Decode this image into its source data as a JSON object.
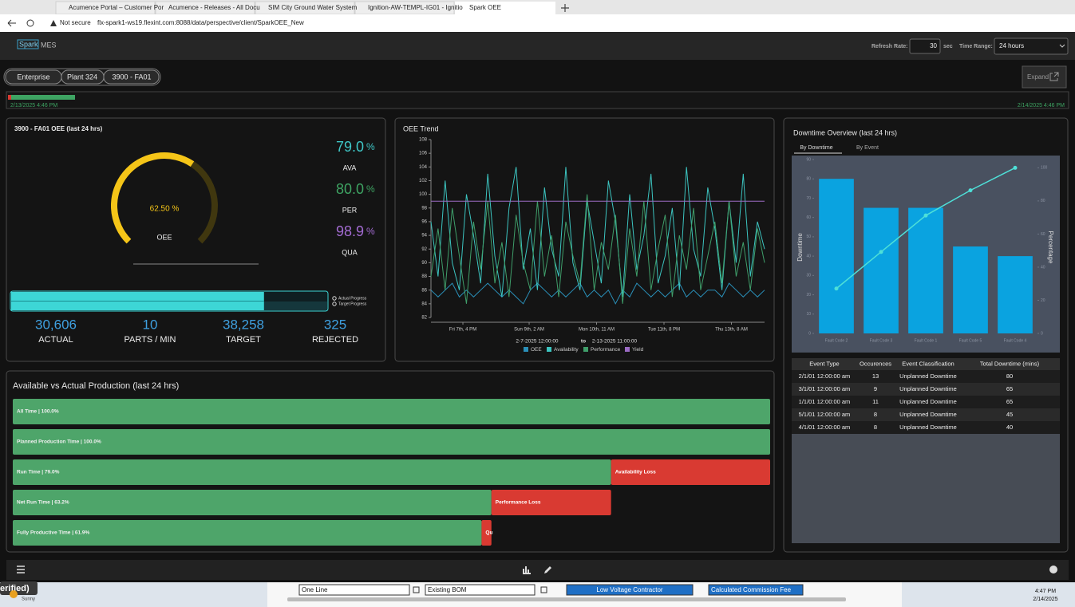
{
  "browser": {
    "tabs": [
      "Acumence Portal – Customer Por",
      "Acumence - Releases - All Docu",
      "SIM City Ground Water System",
      "Ignition-AW-TEMPL-IG01 - Ignitio",
      "Spark OEE"
    ],
    "security": "Not secure",
    "url": "flx-spark1-ws19.flexint.com:8088/data/perspective/client/SparkOEE_New"
  },
  "header": {
    "logo_main": "Spark",
    "logo_sub": "MES",
    "refresh_label": "Refresh Rate:",
    "refresh_value": "30",
    "refresh_unit": "sec",
    "time_range_label": "Time Range:",
    "time_range": "24 hours",
    "breadcrumbs": [
      "Enterprise",
      "Plant 324",
      "3900 - FA01"
    ],
    "expand": "Expand",
    "timeline_start": "2/13/2025 4:46 PM",
    "timeline_end": "2/14/2025 4:46 PM"
  },
  "oee_panel": {
    "title": "3900 - FA01 OEE (last 24 hrs)",
    "gauge": {
      "type": "gauge",
      "value": 62.5,
      "value_label": "62.50 %",
      "label": "OEE",
      "ylim": [
        0,
        100
      ],
      "color": "#f5c518",
      "track_color": "#40370f"
    },
    "metrics": [
      {
        "name": "AVA",
        "value": 79,
        "value_label": "79.0",
        "unit": "%",
        "color": "#3fc7c7"
      },
      {
        "name": "PER",
        "value": 80,
        "value_label": "80.0",
        "unit": "%",
        "color": "#3ea463"
      },
      {
        "name": "QUA",
        "value": 98.9,
        "unit": "%",
        "color": "#a26bd1"
      }
    ],
    "progress": {
      "legend": [
        "Actual Progress",
        "Target Progress"
      ],
      "color": "#3dd6d6",
      "track_color": "#15373c"
    },
    "stats": [
      {
        "name": "ACTUAL",
        "value": 30606,
        "value_label": "30,606"
      },
      {
        "name": "PARTS / MIN",
        "value": 10
      },
      {
        "name": "TARGET",
        "value": 38258,
        "value_label": "38,258"
      },
      {
        "name": "REJECTED",
        "value": 325
      }
    ]
  },
  "trend_chart": {
    "type": "line",
    "title": "OEE Trend",
    "x": [
      0,
      3,
      6,
      9,
      12,
      15,
      18,
      21,
      24,
      27,
      30,
      33,
      36,
      39,
      42,
      45,
      48,
      51,
      54,
      57,
      60,
      63,
      66,
      69,
      72,
      75,
      78,
      81,
      84,
      87,
      90,
      93,
      96,
      99,
      102,
      105,
      108,
      111,
      114,
      117,
      120,
      123,
      126,
      129,
      132,
      135,
      138,
      141
    ],
    "xlim": [
      0,
      141
    ],
    "xticks": [
      {
        "value": 13.5,
        "label": "Fri 7th, 4 PM"
      },
      {
        "value": 41.5,
        "label": "Sun 9th, 2 AM"
      },
      {
        "value": 70,
        "label": "Mon 10th, 11 AM"
      },
      {
        "value": 98.5,
        "label": "Tue 11th, 8 PM"
      },
      {
        "value": 127,
        "label": "Thu 13th, 8 AM"
      }
    ],
    "ylim": [
      82,
      108
    ],
    "yticks": [
      82,
      84,
      86,
      88,
      90,
      92,
      94,
      96,
      98,
      100,
      102,
      104,
      106,
      108
    ],
    "range_start": "2-7-2025  12:00:00",
    "range_sep": "to",
    "range_end": "2-13-2025  11:00:00",
    "series": [
      {
        "name": "OEE",
        "color": "#2a8fb8",
        "values": [
          86,
          85,
          86,
          87,
          85,
          86,
          85,
          86,
          87,
          86,
          85,
          86,
          85,
          84,
          86,
          87,
          86,
          85,
          86,
          85,
          86,
          87,
          85,
          86,
          85,
          86,
          84,
          86,
          85,
          87,
          86,
          85,
          86,
          85,
          86,
          87,
          85,
          86,
          85,
          86,
          86,
          85,
          87,
          86,
          85,
          86,
          85,
          86
        ]
      },
      {
        "name": "Availability",
        "color": "#3cc4c0",
        "values": [
          96,
          88,
          102,
          90,
          86,
          100,
          94,
          87,
          103,
          91,
          85,
          98,
          104,
          89,
          95,
          86,
          101,
          92,
          88,
          104,
          90,
          86,
          99,
          93,
          87,
          102,
          96,
          85,
          100,
          89,
          94,
          103,
          87,
          91,
          98,
          86,
          104,
          92,
          88,
          101,
          95,
          86,
          99,
          90,
          103,
          88,
          96,
          92
        ]
      },
      {
        "name": "Performance",
        "color": "#3f9e6a",
        "values": [
          88,
          95,
          86,
          98,
          91,
          84,
          96,
          89,
          99,
          87,
          93,
          85,
          97,
          90,
          86,
          99,
          88,
          94,
          85,
          96,
          91,
          87,
          100,
          86,
          93,
          89,
          97,
          84,
          95,
          88,
          99,
          86,
          92,
          97,
          85,
          94,
          89,
          98,
          86,
          91,
          96,
          87,
          99,
          88,
          93,
          86,
          95,
          90
        ]
      },
      {
        "name": "Yield",
        "color": "#9b6bc4",
        "values": [
          99,
          99,
          99,
          99,
          99,
          99,
          99,
          99,
          99,
          99,
          99,
          99,
          99,
          99,
          99,
          99,
          99,
          99,
          99,
          99,
          99,
          99,
          99,
          99,
          99,
          99,
          99,
          99,
          99,
          99,
          99,
          99,
          99,
          99,
          99,
          99,
          99,
          99,
          99,
          99,
          99,
          99,
          99,
          99,
          99,
          99,
          99,
          99
        ]
      }
    ]
  },
  "downtime_chart": {
    "type": "bar",
    "title": "Downtime Overview (last 24 hrs)",
    "tabs": [
      "By Downtime",
      "By Event"
    ],
    "categories": [
      "Fault Code 2",
      "Fault Code 3",
      "Fault Code 1",
      "Fault Code 5",
      "Fault Code 4"
    ],
    "series": [
      {
        "name": "Downtime",
        "color": "#0aa3e0",
        "values": [
          80,
          65,
          65,
          45,
          40
        ]
      },
      {
        "name": "Percentage",
        "color": "#4ee0d8",
        "axis": "y2",
        "values": [
          27.1,
          49.2,
          71.2,
          86.4,
          100
        ]
      }
    ],
    "ylim": [
      0,
      90
    ],
    "yticks": [
      0,
      10,
      20,
      30,
      40,
      50,
      60,
      70,
      80,
      90
    ],
    "y2lim": [
      0,
      105
    ],
    "y2ticks": [
      0,
      20,
      40,
      60,
      80,
      100
    ]
  },
  "downtime_table": {
    "headers": [
      "Event Type",
      "Occurences",
      "Event Classification",
      "Total Downtime (mins)"
    ],
    "rows": [
      [
        "2/1/01 12:00:00 am",
        13,
        "Unplanned Downtime",
        80
      ],
      [
        "3/1/01 12:00:00 am",
        9,
        "Unplanned Downtime",
        65
      ],
      [
        "1/1/01 12:00:00 am",
        11,
        "Unplanned Downtime",
        65
      ],
      [
        "5/1/01 12:00:00 am",
        8,
        "Unplanned Downtime",
        45
      ],
      [
        "4/1/01 12:00:00 am",
        8,
        "Unplanned Downtime",
        40
      ]
    ]
  },
  "production_chart": {
    "type": "hbar",
    "title": "Available vs Actual Production (last 24 hrs)",
    "categories": [
      "All Time | 100.0%",
      "Planned Production Time | 100.0%",
      "Run Time | 79.0%",
      "Net Run Time | 63.2%",
      "Fully Productive Time | 61.9%"
    ],
    "values": [
      100,
      100,
      79,
      63.2,
      61.9
    ],
    "loss_values": [
      null,
      null,
      21,
      15.8,
      1.3
    ],
    "loss_labels": [
      null,
      null,
      "Availability Loss",
      "Performance Loss",
      "Qu"
    ],
    "xlim": [
      0,
      100
    ],
    "color": "#4ea56a",
    "loss_color": "#d93a32"
  },
  "taskbar": {
    "overlay": "erified)",
    "weather": "Sunny",
    "sheet_cells": [
      "One Line",
      "Existing BOM",
      "Low Voltage Contractor",
      "Calculated Commission Fee"
    ],
    "time": "4:47 PM",
    "date": "2/14/2025"
  }
}
